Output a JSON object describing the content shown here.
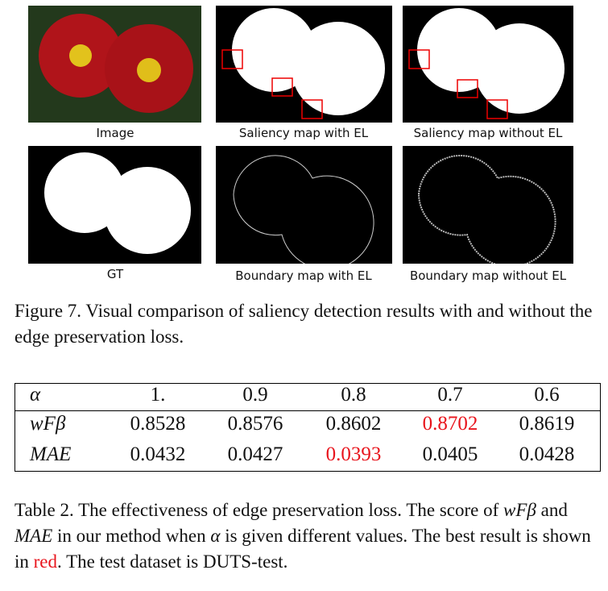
{
  "figure": {
    "panels": [
      "Image",
      "Saliency map with EL",
      "Saliency map without EL",
      "GT",
      "Boundary map with EL",
      "Boundary map without EL"
    ],
    "caption": "Figure 7. Visual comparison of saliency detection results with and without the edge preservation loss."
  },
  "table": {
    "header": [
      "α",
      "1.",
      "0.9",
      "0.8",
      "0.7",
      "0.6"
    ],
    "rows": [
      {
        "label": "wFβ",
        "values": [
          "0.8528",
          "0.8576",
          "0.8602",
          "0.8702",
          "0.8619"
        ],
        "best": 3
      },
      {
        "label": "MAE",
        "values": [
          "0.0432",
          "0.0427",
          "0.0393",
          "0.0405",
          "0.0428"
        ],
        "best": 2
      }
    ],
    "highlight_color": "#e8141c",
    "caption": [
      "Table 2. The effectiveness of edge preservation loss. The score of ",
      "wFβ",
      " and ",
      "MAE",
      " in our method when ",
      "α",
      " is given different values. The best result is shown in ",
      "red",
      ". The test dataset is DUTS-test."
    ]
  }
}
